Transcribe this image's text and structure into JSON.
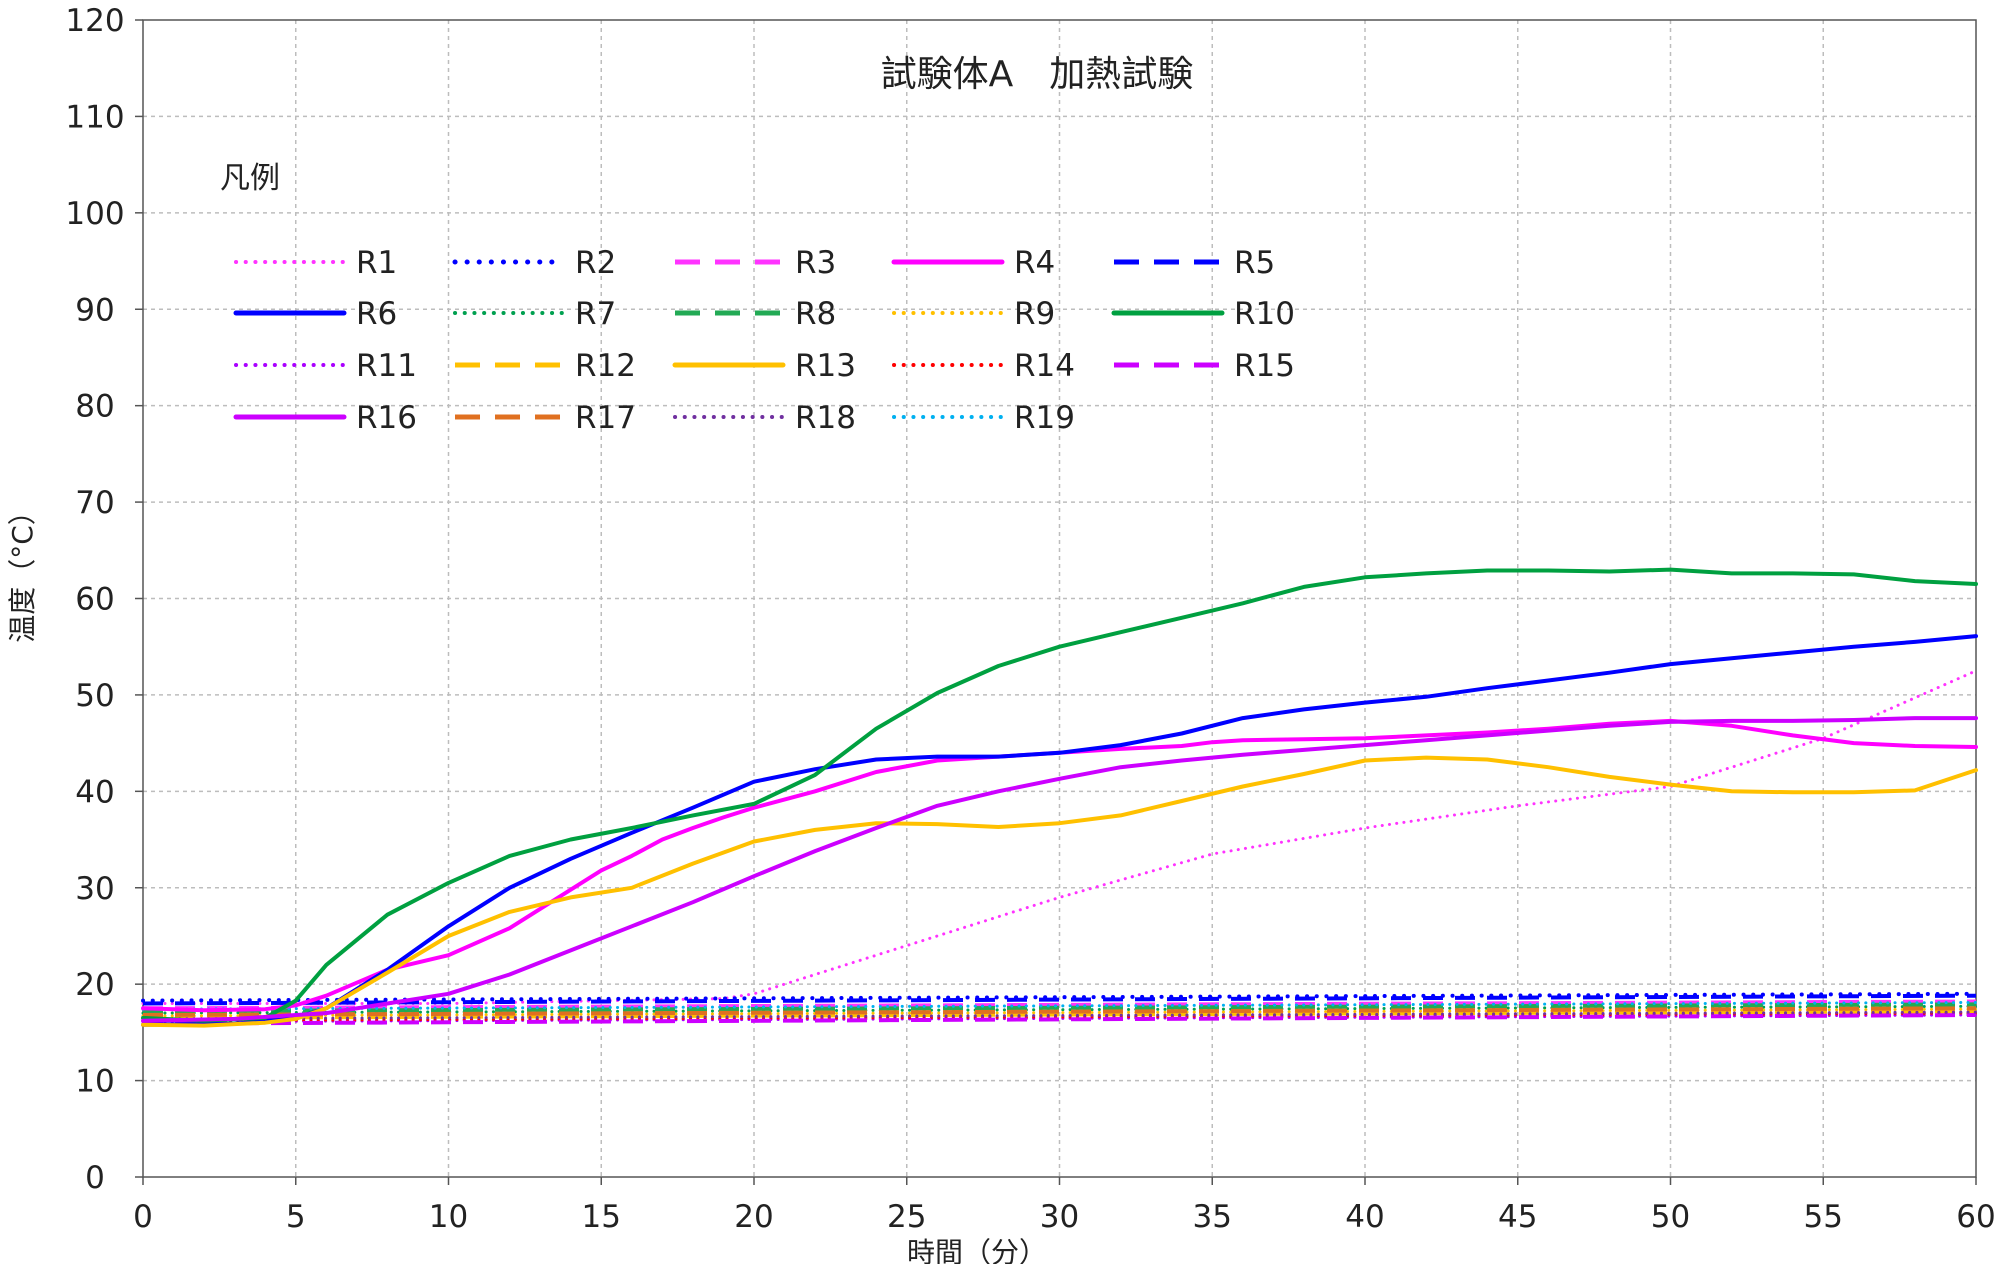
{
  "chart_data": {
    "type": "line",
    "title": "試験体A　加熱試験",
    "xlabel": "時間（分）",
    "ylabel": "温度（°C）",
    "xlim": [
      0,
      60
    ],
    "ylim": [
      0,
      120
    ],
    "xticks": [
      0,
      5,
      10,
      15,
      20,
      25,
      30,
      35,
      40,
      45,
      50,
      55,
      60
    ],
    "yticks": [
      0,
      10,
      20,
      30,
      40,
      50,
      60,
      70,
      80,
      90,
      100,
      110,
      120
    ],
    "grid": true,
    "legend": {
      "title": "凡例",
      "placement": "top-left",
      "columns": 5
    },
    "series": [
      {
        "name": "R1",
        "color": "#FF33FF",
        "dash": "dot",
        "width": 3,
        "x": [
          0,
          10,
          19,
          20,
          22,
          25,
          30,
          35,
          40,
          45,
          50,
          55,
          60
        ],
        "y": [
          18,
          18,
          18.5,
          19,
          21,
          24,
          29,
          33.5,
          36.2,
          38.5,
          40.5,
          45.5,
          52.5
        ]
      },
      {
        "name": "R2",
        "color": "#0000FF",
        "dash": "dot",
        "width": 4,
        "x": [
          0,
          60
        ],
        "y": [
          18.3,
          19.0
        ]
      },
      {
        "name": "R3",
        "color": "#FF33FF",
        "dash": "dash",
        "width": 4,
        "x": [
          0,
          60
        ],
        "y": [
          17.5,
          18.2
        ]
      },
      {
        "name": "R4",
        "color": "#FF00FF",
        "dash": "solid",
        "width": 4,
        "x": [
          0,
          2,
          4,
          5,
          6,
          8,
          10,
          12,
          14,
          15,
          16,
          17,
          18,
          19,
          20,
          22,
          24,
          26,
          28,
          30,
          32,
          34,
          35,
          36,
          38,
          40,
          42,
          44,
          46,
          48,
          50,
          52,
          54,
          56,
          58,
          60
        ],
        "y": [
          17.5,
          17.3,
          17.4,
          17.8,
          18.8,
          21.5,
          23,
          25.8,
          29.8,
          31.8,
          33.3,
          35,
          36.2,
          37.3,
          38.3,
          40,
          42,
          43.2,
          43.6,
          44,
          44.4,
          44.7,
          45.1,
          45.3,
          45.4,
          45.5,
          45.8,
          46.1,
          46.5,
          47,
          47.3,
          46.8,
          45.8,
          45,
          44.7,
          44.6
        ]
      },
      {
        "name": "R5",
        "color": "#0000FF",
        "dash": "dash",
        "width": 4,
        "x": [
          0,
          60
        ],
        "y": [
          18.0,
          18.8
        ]
      },
      {
        "name": "R6",
        "color": "#0000FF",
        "dash": "solid",
        "width": 4,
        "x": [
          0,
          3,
          5,
          6,
          8,
          10,
          12,
          14,
          16,
          18,
          20,
          22,
          24,
          26,
          28,
          30,
          32,
          34,
          36,
          38,
          40,
          42,
          44,
          46,
          48,
          50,
          52,
          54,
          56,
          58,
          60
        ],
        "y": [
          15.8,
          15.9,
          16.5,
          17.5,
          21.5,
          26,
          30,
          33,
          35.7,
          38.3,
          41,
          42.3,
          43.3,
          43.6,
          43.6,
          44,
          44.8,
          46,
          47.6,
          48.5,
          49.2,
          49.8,
          50.7,
          51.5,
          52.3,
          53.2,
          53.8,
          54.4,
          55,
          55.5,
          56.1
        ]
      },
      {
        "name": "R7",
        "color": "#00A050",
        "dash": "dot",
        "width": 3,
        "x": [
          0,
          60
        ],
        "y": [
          17.0,
          17.7
        ]
      },
      {
        "name": "R8",
        "color": "#22AA55",
        "dash": "dash",
        "width": 4,
        "x": [
          0,
          60
        ],
        "y": [
          17.2,
          17.9
        ]
      },
      {
        "name": "R9",
        "color": "#FFC000",
        "dash": "dot",
        "width": 3,
        "x": [
          0,
          60
        ],
        "y": [
          16.7,
          17.4
        ]
      },
      {
        "name": "R10",
        "color": "#00A040",
        "dash": "solid",
        "width": 4,
        "x": [
          0,
          2,
          4,
          5,
          6,
          8,
          10,
          12,
          14,
          16,
          18,
          20,
          22,
          24,
          26,
          28,
          30,
          32,
          34,
          36,
          38,
          40,
          42,
          44,
          46,
          48,
          50,
          52,
          54,
          56,
          58,
          60
        ],
        "y": [
          16.5,
          16.2,
          16.5,
          18.3,
          22,
          27.2,
          30.5,
          33.3,
          35,
          36.2,
          37.5,
          38.7,
          41.7,
          46.5,
          50.2,
          53,
          55,
          56.5,
          58,
          59.5,
          61.2,
          62.2,
          62.6,
          62.9,
          62.9,
          62.8,
          63,
          62.6,
          62.6,
          62.5,
          61.8,
          61.5
        ]
      },
      {
        "name": "R11",
        "color": "#AA00FF",
        "dash": "dot",
        "width": 3,
        "x": [
          0,
          60
        ],
        "y": [
          16.1,
          16.8
        ]
      },
      {
        "name": "R12",
        "color": "#FFC000",
        "dash": "dash",
        "width": 4,
        "x": [
          0,
          60
        ],
        "y": [
          16.5,
          17.2
        ]
      },
      {
        "name": "R13",
        "color": "#FFC000",
        "dash": "solid",
        "width": 4,
        "x": [
          0,
          2,
          4,
          5,
          6,
          8,
          10,
          12,
          14,
          16,
          18,
          20,
          22,
          24,
          26,
          28,
          30,
          32,
          34,
          36,
          38,
          40,
          42,
          44,
          46,
          48,
          50,
          52,
          54,
          56,
          58,
          60
        ],
        "y": [
          15.8,
          15.7,
          16,
          16.4,
          17.5,
          21.2,
          25,
          27.5,
          29,
          30,
          32.5,
          34.8,
          36,
          36.7,
          36.6,
          36.3,
          36.7,
          37.5,
          39,
          40.5,
          41.8,
          43.2,
          43.5,
          43.3,
          42.5,
          41.5,
          40.7,
          40,
          39.9,
          39.9,
          40.1,
          42.2
        ]
      },
      {
        "name": "R14",
        "color": "#FF0000",
        "dash": "dot",
        "width": 3,
        "x": [
          0,
          60
        ],
        "y": [
          16.2,
          17.0
        ]
      },
      {
        "name": "R15",
        "color": "#CC00FF",
        "dash": "dash",
        "width": 4,
        "x": [
          0,
          60
        ],
        "y": [
          15.9,
          16.8
        ]
      },
      {
        "name": "R16",
        "color": "#CC00FF",
        "dash": "solid",
        "width": 4,
        "x": [
          0,
          3,
          6,
          8,
          10,
          12,
          14,
          16,
          18,
          20,
          22,
          24,
          26,
          28,
          30,
          32,
          34,
          36,
          38,
          40,
          42,
          44,
          46,
          48,
          50,
          52,
          54,
          56,
          58,
          60
        ],
        "y": [
          16.2,
          16.4,
          17,
          18,
          19,
          21,
          23.5,
          26,
          28.5,
          31.2,
          33.8,
          36.2,
          38.5,
          40,
          41.3,
          42.5,
          43.2,
          43.8,
          44.3,
          44.8,
          45.3,
          45.8,
          46.3,
          46.8,
          47.2,
          47.3,
          47.3,
          47.4,
          47.6,
          47.6
        ]
      },
      {
        "name": "R17",
        "color": "#E07020",
        "dash": "dash",
        "width": 4,
        "x": [
          0,
          60
        ],
        "y": [
          16.8,
          17.5
        ]
      },
      {
        "name": "R18",
        "color": "#7030A0",
        "dash": "dot",
        "width": 3,
        "x": [
          0,
          60
        ],
        "y": [
          16.4,
          17.1
        ]
      },
      {
        "name": "R19",
        "color": "#00B0F0",
        "dash": "dot",
        "width": 3,
        "x": [
          0,
          60
        ],
        "y": [
          17.4,
          18.1
        ]
      }
    ]
  }
}
